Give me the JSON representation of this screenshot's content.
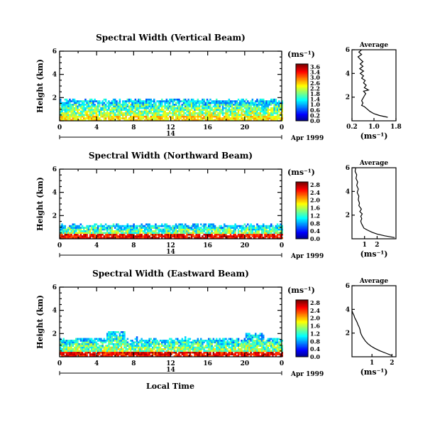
{
  "figure": {
    "common_x_label": "Local Time",
    "date_day": "14",
    "date_label": "Apr 1999",
    "avg_xlabel": "(ms⁻¹)"
  },
  "chart_data": [
    {
      "type": "heatmap",
      "title": "Spectral Width (Vertical Beam)",
      "ylabel": "Height (km)",
      "xlim": [
        0,
        24
      ],
      "ylim": [
        0,
        6
      ],
      "xticks": [
        "0",
        "4",
        "8",
        "12",
        "16",
        "20",
        "0"
      ],
      "yticks": [
        "2",
        "4",
        "6"
      ],
      "colorbar_label": "(ms⁻¹)",
      "colorbar_ticks": [
        "3.6",
        "3.4",
        "3.0",
        "2.6",
        "2.2",
        "1.8",
        "1.4",
        "1.0",
        "0.6",
        "0.2",
        "0.0"
      ],
      "colorbar_max": 3.6,
      "echo_top_km": 1.75,
      "average": {
        "title": "Average",
        "xlim": [
          0.2,
          1.8
        ],
        "ylim": [
          0,
          6
        ],
        "xticks": [
          "0.2",
          "1.0",
          "1.8"
        ],
        "yticks": [
          "2",
          "4",
          "6"
        ],
        "profile": [
          [
            1.5,
            0.3
          ],
          [
            1.2,
            0.45
          ],
          [
            1.0,
            0.6
          ],
          [
            0.85,
            0.8
          ],
          [
            0.75,
            1.0
          ],
          [
            0.65,
            1.2
          ],
          [
            0.55,
            1.3
          ],
          [
            0.6,
            1.5
          ],
          [
            0.55,
            1.7
          ],
          [
            0.6,
            1.9
          ],
          [
            0.65,
            2.1
          ],
          [
            0.7,
            2.3
          ],
          [
            0.62,
            2.5
          ],
          [
            0.8,
            2.6
          ],
          [
            0.65,
            2.8
          ],
          [
            0.72,
            3.0
          ],
          [
            0.62,
            3.2
          ],
          [
            0.68,
            3.4
          ],
          [
            0.55,
            3.6
          ],
          [
            0.62,
            3.8
          ],
          [
            0.5,
            4.0
          ],
          [
            0.62,
            4.2
          ],
          [
            0.48,
            4.4
          ],
          [
            0.6,
            4.6
          ],
          [
            0.5,
            4.8
          ],
          [
            0.6,
            5.0
          ],
          [
            0.5,
            5.2
          ],
          [
            0.42,
            5.4
          ],
          [
            0.55,
            5.6
          ],
          [
            0.45,
            5.8
          ],
          [
            0.55,
            6.0
          ]
        ]
      }
    },
    {
      "type": "heatmap",
      "title": "Spectral Width (Northward Beam)",
      "ylabel": "Height (km)",
      "xlim": [
        0,
        24
      ],
      "ylim": [
        0,
        6
      ],
      "xticks": [
        "0",
        "4",
        "8",
        "12",
        "16",
        "20",
        "0"
      ],
      "yticks": [
        "2",
        "4",
        "6"
      ],
      "colorbar_label": "(ms⁻¹)",
      "colorbar_ticks": [
        "2.8",
        "2.4",
        "2.0",
        "1.6",
        "1.2",
        "0.8",
        "0.4",
        "0.0"
      ],
      "colorbar_max": 2.8,
      "echo_top_km": 1.15,
      "average": {
        "title": "Average",
        "xlim": [
          0,
          3.5
        ],
        "ylim": [
          0,
          6
        ],
        "xticks": [
          "1",
          "2"
        ],
        "yticks": [
          "2",
          "4",
          "6"
        ],
        "profile": [
          [
            3.4,
            0.1
          ],
          [
            2.6,
            0.25
          ],
          [
            2.0,
            0.4
          ],
          [
            1.6,
            0.55
          ],
          [
            1.2,
            0.75
          ],
          [
            0.95,
            0.9
          ],
          [
            0.85,
            1.1
          ],
          [
            0.75,
            1.3
          ],
          [
            0.7,
            1.5
          ],
          [
            0.78,
            1.7
          ],
          [
            0.7,
            1.9
          ],
          [
            0.82,
            2.1
          ],
          [
            0.62,
            2.3
          ],
          [
            0.75,
            2.5
          ],
          [
            0.55,
            2.8
          ],
          [
            0.6,
            3.0
          ],
          [
            0.5,
            3.3
          ],
          [
            0.55,
            3.6
          ],
          [
            0.42,
            3.9
          ],
          [
            0.5,
            4.2
          ],
          [
            0.38,
            4.5
          ],
          [
            0.45,
            4.8
          ],
          [
            0.32,
            5.1
          ],
          [
            0.38,
            5.4
          ],
          [
            0.25,
            5.7
          ],
          [
            0.3,
            6.0
          ]
        ]
      }
    },
    {
      "type": "heatmap",
      "title": "Spectral Width (Eastward Beam)",
      "ylabel": "Height (km)",
      "xlim": [
        0,
        24
      ],
      "ylim": [
        0,
        6
      ],
      "xticks": [
        "0",
        "4",
        "8",
        "12",
        "16",
        "20",
        "0"
      ],
      "yticks": [
        "2",
        "4",
        "6"
      ],
      "colorbar_label": "(ms⁻¹)",
      "colorbar_ticks": [
        "2.8",
        "2.4",
        "2.0",
        "1.6",
        "1.2",
        "0.8",
        "0.4",
        "0.0"
      ],
      "colorbar_max": 2.8,
      "echo_top_km": 1.5,
      "average": {
        "title": "Average",
        "xlim": [
          0,
          2.2
        ],
        "ylim": [
          0,
          6
        ],
        "xticks": [
          "1",
          "2"
        ],
        "yticks": [
          "2",
          "4",
          "6"
        ],
        "profile": [
          [
            2.0,
            0.1
          ],
          [
            1.7,
            0.3
          ],
          [
            1.4,
            0.5
          ],
          [
            1.15,
            0.7
          ],
          [
            0.95,
            0.9
          ],
          [
            0.8,
            1.1
          ],
          [
            0.68,
            1.3
          ],
          [
            0.6,
            1.5
          ],
          [
            0.52,
            1.7
          ],
          [
            0.46,
            1.9
          ],
          [
            0.42,
            2.1
          ],
          [
            0.4,
            2.3
          ],
          [
            0.36,
            2.5
          ],
          [
            0.3,
            2.7
          ],
          [
            0.26,
            2.9
          ],
          [
            0.2,
            3.1
          ],
          [
            0.14,
            3.3
          ],
          [
            0.1,
            3.5
          ],
          [
            0.04,
            3.7
          ],
          [
            0.0,
            3.9
          ]
        ]
      }
    }
  ]
}
